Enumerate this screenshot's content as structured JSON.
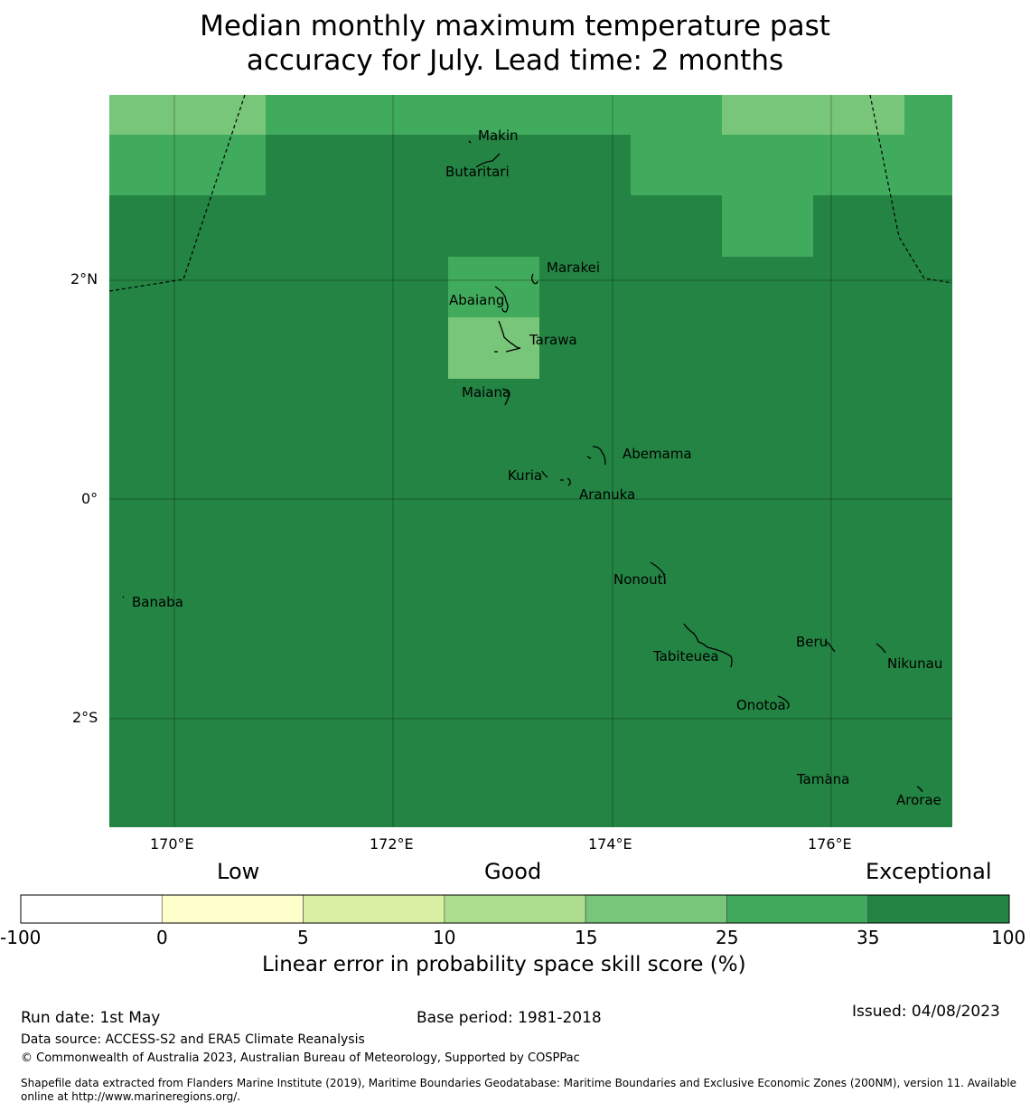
{
  "title": {
    "line1": "Median monthly maximum temperature past",
    "line2": "accuracy for July. Lead time: 2 months"
  },
  "map": {
    "lon_ticks": [
      "170°E",
      "172°E",
      "174°E",
      "176°E"
    ],
    "lat_ticks": [
      "2°N",
      "0°",
      "2°S"
    ],
    "places": [
      {
        "name": "Makin"
      },
      {
        "name": "Butaritari"
      },
      {
        "name": "Marakei"
      },
      {
        "name": "Abaiang"
      },
      {
        "name": "Tarawa"
      },
      {
        "name": "Maiana"
      },
      {
        "name": "Abemama"
      },
      {
        "name": "Kuria"
      },
      {
        "name": "Aranuka"
      },
      {
        "name": "Nonouti"
      },
      {
        "name": "Banaba"
      },
      {
        "name": "Tabiteuea"
      },
      {
        "name": "Beru"
      },
      {
        "name": "Nikunau"
      },
      {
        "name": "Onotoa"
      },
      {
        "name": "Tamana"
      },
      {
        "name": "Arorae"
      }
    ]
  },
  "legend": {
    "categories": [
      "Low",
      "Good",
      "Exceptional"
    ],
    "ticks": [
      "-100",
      "0",
      "5",
      "10",
      "15",
      "25",
      "35",
      "100"
    ],
    "colors": [
      "#ffffff",
      "#ffffcc",
      "#d9f0a3",
      "#addd8e",
      "#78c679",
      "#41ab5d",
      "#238443"
    ],
    "label": "Linear error in probability space skill score (%)"
  },
  "footer": {
    "run_date": "Run date: 1st May",
    "base_period": "Base period: 1981-2018",
    "issued": "Issued: 04/08/2023",
    "data_source": "Data source: ACCESS-S2 and ERA5 Climate Reanalysis",
    "copyright": "© Commonwealth of Australia 2023, Australian Bureau of Meteorology, Supported by COSPPac",
    "shapefile_line1": "Shapefile data extracted from Flanders Marine Institute (2019), Maritime Boundaries Geodatabase: Maritime Boundaries and Exclusive Economic Zones (200NM), version 11. Available",
    "shapefile_line2": "online at http://www.marineregions.org/."
  }
}
